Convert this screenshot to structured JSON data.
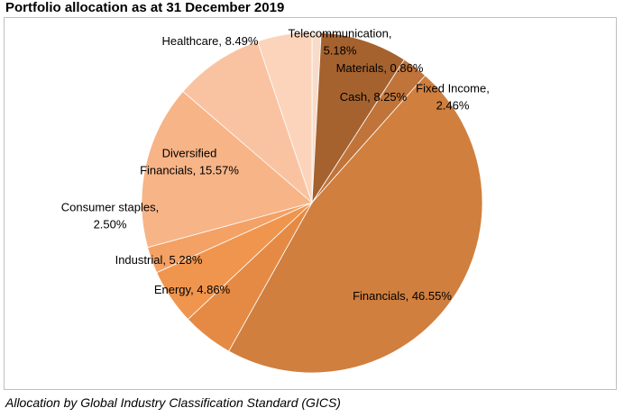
{
  "title": "Portfolio allocation as at 31 December 2019",
  "caption": "Allocation by Global Industry Classification Standard (GICS)",
  "chart_data": {
    "type": "pie",
    "title": "Portfolio allocation as at 31 December 2019",
    "start_angle_deg": 0,
    "direction": "clockwise",
    "slices": [
      {
        "label": "Materials",
        "value": 0.86,
        "value_label": "0.86%",
        "label_lines": [
          "Materials, 0.86%"
        ],
        "color": "#f8dcc9"
      },
      {
        "label": "Cash",
        "value": 8.25,
        "value_label": "8.25%",
        "label_lines": [
          "Cash, 8.25%"
        ],
        "color": "#a5622e"
      },
      {
        "label": "Fixed Income",
        "value": 2.46,
        "value_label": "2.46%",
        "label_lines": [
          "Fixed Income,",
          "2.46%"
        ],
        "color": "#c0743a"
      },
      {
        "label": "Financials",
        "value": 46.55,
        "value_label": "46.55%",
        "label_lines": [
          "Financials, 46.55%"
        ],
        "color": "#d07f3e"
      },
      {
        "label": "Energy",
        "value": 4.86,
        "value_label": "4.86%",
        "label_lines": [
          "Energy, 4.86%"
        ],
        "color": "#e58a44"
      },
      {
        "label": "Industrial",
        "value": 5.28,
        "value_label": "5.28%",
        "label_lines": [
          "Industrial, 5.28%"
        ],
        "color": "#f0954e"
      },
      {
        "label": "Consumer staples",
        "value": 2.5,
        "value_label": "2.50%",
        "label_lines": [
          "Consumer staples,",
          "2.50%"
        ],
        "color": "#f4a165"
      },
      {
        "label": "Diversified Financials",
        "value": 15.57,
        "value_label": "15.57%",
        "label_lines": [
          "Diversified",
          "Financials, 15.57%"
        ],
        "color": "#f7b487"
      },
      {
        "label": "Healthcare",
        "value": 8.49,
        "value_label": "8.49%",
        "label_lines": [
          "Healthcare, 8.49%"
        ],
        "color": "#f9c3a2"
      },
      {
        "label": "Telecommunication",
        "value": 5.18,
        "value_label": "5.18%",
        "label_lines": [
          "Telecommunication,",
          "5.18%"
        ],
        "color": "#fbd4bb"
      }
    ]
  }
}
